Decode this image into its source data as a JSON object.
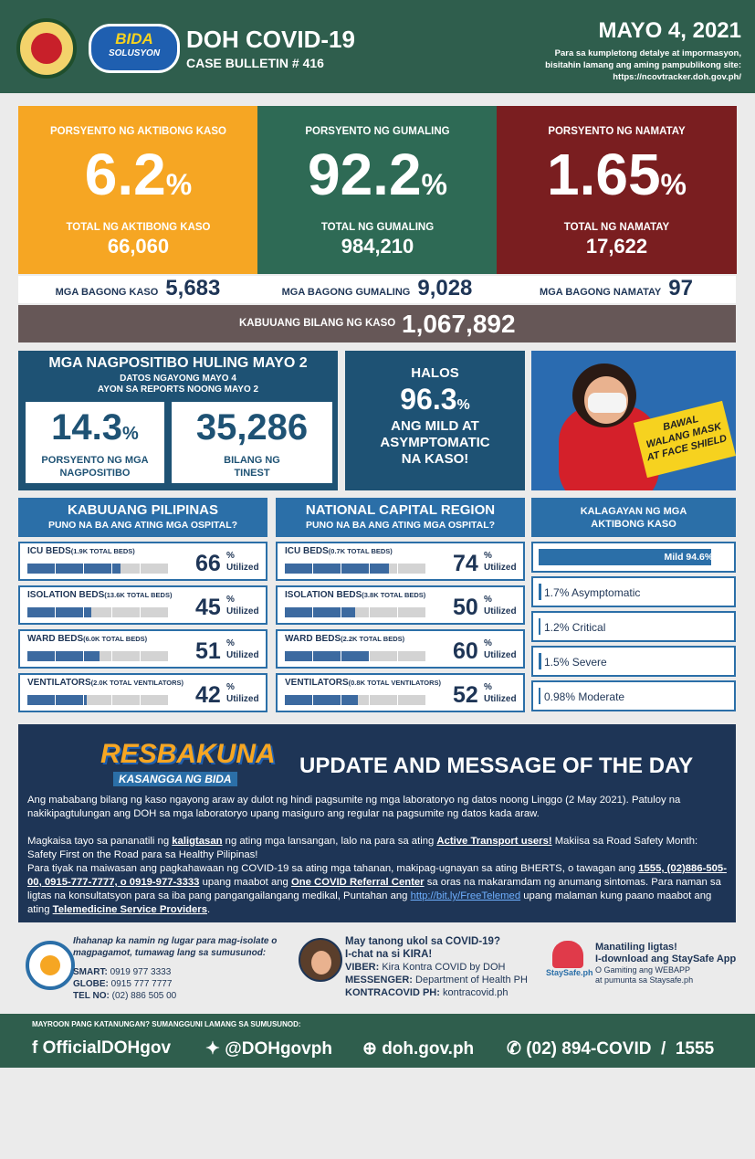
{
  "header": {
    "logo_top": "BIDA",
    "logo_bottom": "SOLUSYON",
    "title": "DOH COVID-19",
    "bulletin": "CASE BULLETIN # 416",
    "date": "MAYO 4, 2021",
    "note": [
      "Para sa kumpletong detalye at impormasyon,",
      "bisitahin lamang ang aming pampublikong site:",
      "https://ncovtracker.doh.gov.ph/"
    ]
  },
  "pct_sign": "%",
  "stats": [
    {
      "heading": "PORSYENTO NG AKTIBONG KASO",
      "percent": 6.2,
      "total_label": "TOTAL NG AKTIBONG KASO",
      "total": "66,060",
      "new_label": "MGA BAGONG KASO",
      "new": "5,683",
      "color": "#f6a623"
    },
    {
      "heading": "PORSYENTO NG GUMALING",
      "percent": 92.2,
      "total_label": "TOTAL NG GUMALING",
      "total": "984,210",
      "new_label": "MGA BAGONG GUMALING",
      "new": "9,028",
      "color": "#2e6a55"
    },
    {
      "heading": "PORSYENTO NG NAMATAY",
      "percent": 1.65,
      "total_label": "TOTAL NG NAMATAY",
      "total": "17,622",
      "new_label": "MGA BAGONG NAMATAY",
      "new": 97,
      "color": "#7a1e20"
    }
  ],
  "total_cases": {
    "label": "KABUUANG BILANG NG KASO",
    "value": "1,067,892"
  },
  "positives": {
    "title": "MGA NAGPOSITIBO HULING MAYO 2",
    "subtitle": [
      "DATOS NGAYONG MAYO 4",
      "AYON SA REPORTS NOONG MAYO 2"
    ],
    "rate": 14.3,
    "rate_label": [
      "PORSYENTO NG MGA",
      "NAGPOSITIBO"
    ],
    "tests": "35,286",
    "tests_label": [
      "BILANG NG",
      "TINEST"
    ]
  },
  "mild": {
    "lead": "HALOS",
    "value": 96.3,
    "text": [
      "ANG MILD AT",
      "ASYMPTOMATIC",
      "NA KASO!"
    ]
  },
  "poster": {
    "sign": [
      "BAWAL",
      "WALANG MASK",
      "AT FACE SHIELD"
    ]
  },
  "utilized_label": "Utilized",
  "hospitals": [
    {
      "title": "KABUUANG PILIPINAS",
      "subtitle": "PUNO NA BA ANG ATING MGA OSPITAL?",
      "rows": [
        {
          "name": "ICU BEDS",
          "capacity": "(1.9K TOTAL BEDS)",
          "value": 66
        },
        {
          "name": "ISOLATION BEDS",
          "capacity": "(13.6K TOTAL BEDS)",
          "value": 45
        },
        {
          "name": "WARD BEDS",
          "capacity": "(6.0K TOTAL BEDS)",
          "value": 51
        },
        {
          "name": "VENTILATORS",
          "capacity": "(2.0K TOTAL VENTILATORS)",
          "value": 42
        }
      ]
    },
    {
      "title": "NATIONAL CAPITAL REGION",
      "subtitle": "PUNO NA BA ANG ATING MGA OSPITAL?",
      "rows": [
        {
          "name": "ICU BEDS",
          "capacity": "(0.7K TOTAL BEDS)",
          "value": 74
        },
        {
          "name": "ISOLATION BEDS",
          "capacity": "(3.8K TOTAL BEDS)",
          "value": 50
        },
        {
          "name": "WARD BEDS",
          "capacity": "(2.2K TOTAL BEDS)",
          "value": 60
        },
        {
          "name": "VENTILATORS",
          "capacity": "(0.8K TOTAL VENTILATORS)",
          "value": 52
        }
      ]
    }
  ],
  "status": {
    "title": [
      "KALAGAYAN NG MGA",
      "AKTIBONG KASO"
    ],
    "items": [
      {
        "label": "Mild",
        "value": 94.6
      },
      {
        "label": "Asymptomatic",
        "value": 1.7
      },
      {
        "label": "Critical",
        "value": 1.2
      },
      {
        "label": "Severe",
        "value": 1.5
      },
      {
        "label": "Moderate",
        "value": 0.98
      }
    ]
  },
  "update": {
    "logo": "RESBAKUNA",
    "logo_tag": "KASANGGA NG BIDA",
    "title": "UPDATE AND MESSAGE OF THE DAY",
    "paragraphs": [
      [
        {
          "text": "Ang mababang bilang ng kaso ngayong araw ay dulot ng hindi pagsumite ng mga laboratoryo ng datos noong Linggo (2 May 2021). Patuloy na nakikipagtulungan ang DOH sa mga laboratoryo upang masiguro ang regular na pagsumite ng datos kada araw."
        }
      ],
      [
        {
          "text": "Magkaisa tayo sa pananatili ng "
        },
        {
          "text": "kaligtasan",
          "style": "link"
        },
        {
          "text": " ng ating mga lansangan, lalo na para sa ating "
        },
        {
          "text": "Active Transport users!",
          "style": "link"
        },
        {
          "text": " Makiisa sa Road Safety Month: Safety First on the Road para sa Healthy Pilipinas!"
        }
      ],
      [
        {
          "text": "Para tiyak na maiwasan ang pagkahawaan ng COVID-19 sa ating mga tahanan, makipag-ugnayan sa ating BHERTS, o tawagan ang "
        },
        {
          "text": "1555, (02)886-505-00, 0915-777-7777, o 0919-977-3333",
          "style": "link"
        },
        {
          "text": " upang maabot ang "
        },
        {
          "text": "One COVID Referral Center",
          "style": "link"
        },
        {
          "text": " sa oras na makaramdam ng anumang sintomas. Para naman sa ligtas na konsultatsyon para sa iba pang pangangailangang  medikal, Puntahan ang "
        },
        {
          "text": "http://bit.ly/FreeTelemed",
          "style": "url"
        },
        {
          "text": " upang malaman kung paano maabot ang ating "
        },
        {
          "text": "Telemedicine Service Providers",
          "style": "link"
        },
        {
          "text": "."
        }
      ]
    ]
  },
  "contacts": {
    "isolation": {
      "text": [
        "Ihahanap ka namin ng lugar para mag-isolate o",
        "magpagamot, tumawag lang sa sumusunod:"
      ],
      "lines": [
        {
          "label": "SMART:",
          "value": "0919 977 3333"
        },
        {
          "label": "GLOBE:",
          "value": "0915 777 7777"
        },
        {
          "label": "TEL NO:",
          "value": "(02) 886 505 00"
        }
      ]
    },
    "kira": {
      "text": [
        "May tanong ukol sa COVID-19?",
        "I-chat na si KIRA!"
      ],
      "lines": [
        {
          "label": "VIBER:",
          "value": "Kira Kontra COVID by DOH"
        },
        {
          "label": "MESSENGER:",
          "value": "Department of Health PH"
        },
        {
          "label": "KONTRACOVID PH:",
          "value": "kontracovid.ph"
        }
      ]
    },
    "staysafe": {
      "logo": "StaySafe.ph",
      "text": [
        "Manatiling ligtas!",
        "I-download ang StaySafe App"
      ],
      "lines": [
        "O Gamiting ang WEBAPP",
        "at pumunta sa Staysafe.ph"
      ]
    }
  },
  "footer": {
    "prompt": "MAYROON PANG KATANUNGAN? SUMANGGUNI LAMANG SA SUMUSUNOD:",
    "facebook": "OfficialDOHgov",
    "twitter": "@DOHgovph",
    "website": "doh.gov.ph",
    "hotline": "(02) 894-COVID  /  1555"
  }
}
